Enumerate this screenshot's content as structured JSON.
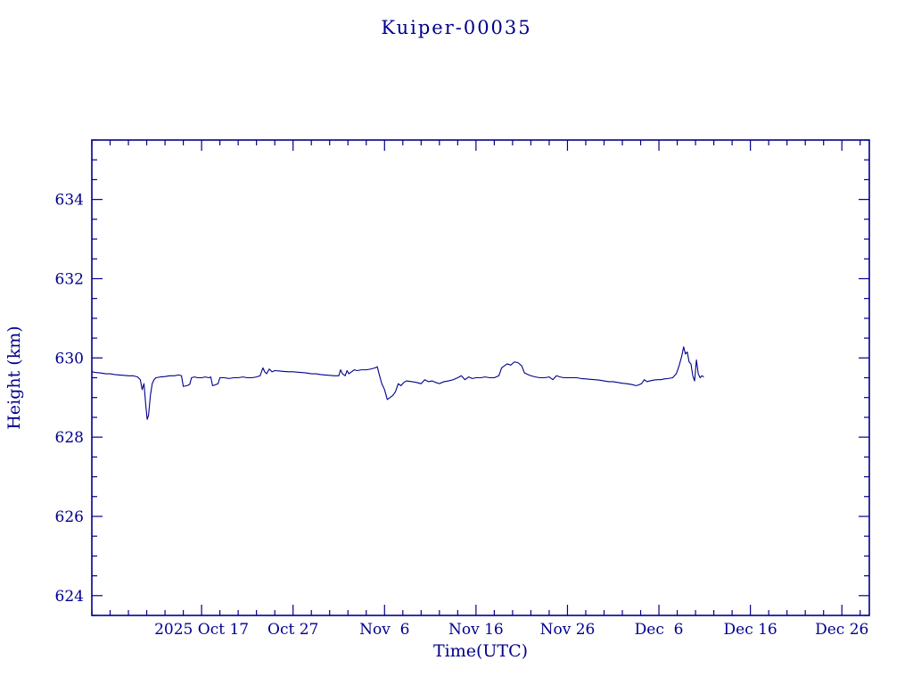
{
  "colors": {
    "ink": "#00008b",
    "background": "#ffffff"
  },
  "chart_data": {
    "type": "line",
    "title": "Kuiper-00035",
    "xlabel": "Time(UTC)",
    "ylabel": "Height (km)",
    "xlim": [
      0,
      85
    ],
    "ylim": [
      623.5,
      635.5
    ],
    "x_unit_note": "",
    "x_ticks": {
      "positions": [
        12,
        22,
        32,
        42,
        52,
        62,
        72,
        82
      ],
      "labels": [
        "2025 Oct 17",
        "Oct 27",
        "Nov  6",
        "Nov 16",
        "Nov 26",
        "Dec  6",
        "Dec 16",
        "Dec 26"
      ],
      "minor_step": 2
    },
    "y_ticks": {
      "positions": [
        624,
        626,
        628,
        630,
        632,
        634
      ],
      "labels": [
        "624",
        "626",
        "628",
        "630",
        "632",
        "634"
      ],
      "minor_step": 0.5
    },
    "series": [
      {
        "name": "height",
        "points": [
          [
            0.0,
            629.65
          ],
          [
            0.5,
            629.63
          ],
          [
            1.0,
            629.62
          ],
          [
            1.5,
            629.6
          ],
          [
            2.0,
            629.6
          ],
          [
            2.5,
            629.58
          ],
          [
            3.0,
            629.57
          ],
          [
            3.5,
            629.56
          ],
          [
            4.0,
            629.55
          ],
          [
            4.5,
            629.55
          ],
          [
            5.0,
            629.52
          ],
          [
            5.3,
            629.45
          ],
          [
            5.5,
            629.2
          ],
          [
            5.7,
            629.35
          ],
          [
            5.9,
            628.8
          ],
          [
            6.05,
            628.45
          ],
          [
            6.2,
            628.55
          ],
          [
            6.4,
            629.05
          ],
          [
            6.6,
            629.35
          ],
          [
            6.8,
            629.45
          ],
          [
            7.0,
            629.5
          ],
          [
            7.5,
            629.52
          ],
          [
            8.0,
            629.53
          ],
          [
            8.5,
            629.55
          ],
          [
            9.0,
            629.55
          ],
          [
            9.5,
            629.57
          ],
          [
            9.8,
            629.55
          ],
          [
            10.0,
            629.28
          ],
          [
            10.4,
            629.3
          ],
          [
            10.7,
            629.33
          ],
          [
            10.9,
            629.5
          ],
          [
            11.2,
            629.52
          ],
          [
            11.6,
            629.5
          ],
          [
            12.0,
            629.5
          ],
          [
            12.4,
            629.52
          ],
          [
            12.8,
            629.5
          ],
          [
            13.0,
            629.52
          ],
          [
            13.2,
            629.3
          ],
          [
            13.5,
            629.32
          ],
          [
            13.8,
            629.35
          ],
          [
            14.0,
            629.5
          ],
          [
            14.5,
            629.5
          ],
          [
            15.0,
            629.48
          ],
          [
            15.5,
            629.5
          ],
          [
            16.0,
            629.5
          ],
          [
            16.5,
            629.52
          ],
          [
            17.0,
            629.5
          ],
          [
            17.5,
            629.5
          ],
          [
            18.0,
            629.52
          ],
          [
            18.4,
            629.55
          ],
          [
            18.7,
            629.75
          ],
          [
            18.9,
            629.65
          ],
          [
            19.1,
            629.6
          ],
          [
            19.4,
            629.72
          ],
          [
            19.7,
            629.65
          ],
          [
            20.0,
            629.68
          ],
          [
            20.5,
            629.67
          ],
          [
            21.0,
            629.66
          ],
          [
            21.5,
            629.65
          ],
          [
            22.0,
            629.65
          ],
          [
            22.5,
            629.64
          ],
          [
            23.0,
            629.63
          ],
          [
            23.5,
            629.62
          ],
          [
            24.0,
            629.6
          ],
          [
            24.5,
            629.6
          ],
          [
            25.0,
            629.58
          ],
          [
            25.5,
            629.57
          ],
          [
            26.0,
            629.56
          ],
          [
            26.5,
            629.55
          ],
          [
            27.0,
            629.55
          ],
          [
            27.2,
            629.7
          ],
          [
            27.4,
            629.6
          ],
          [
            27.7,
            629.55
          ],
          [
            27.9,
            629.68
          ],
          [
            28.1,
            629.6
          ],
          [
            28.4,
            629.65
          ],
          [
            28.7,
            629.7
          ],
          [
            29.0,
            629.68
          ],
          [
            29.5,
            629.7
          ],
          [
            30.0,
            629.7
          ],
          [
            30.5,
            629.72
          ],
          [
            31.0,
            629.75
          ],
          [
            31.2,
            629.78
          ],
          [
            31.4,
            629.6
          ],
          [
            31.7,
            629.35
          ],
          [
            32.0,
            629.2
          ],
          [
            32.3,
            628.95
          ],
          [
            32.6,
            629.0
          ],
          [
            32.9,
            629.05
          ],
          [
            33.2,
            629.15
          ],
          [
            33.5,
            629.35
          ],
          [
            33.8,
            629.3
          ],
          [
            34.1,
            629.38
          ],
          [
            34.4,
            629.42
          ],
          [
            35.0,
            629.4
          ],
          [
            35.5,
            629.38
          ],
          [
            36.0,
            629.35
          ],
          [
            36.4,
            629.45
          ],
          [
            36.8,
            629.4
          ],
          [
            37.2,
            629.42
          ],
          [
            37.6,
            629.38
          ],
          [
            38.0,
            629.35
          ],
          [
            38.5,
            629.4
          ],
          [
            39.0,
            629.42
          ],
          [
            39.5,
            629.45
          ],
          [
            40.0,
            629.5
          ],
          [
            40.4,
            629.55
          ],
          [
            40.8,
            629.45
          ],
          [
            41.2,
            629.52
          ],
          [
            41.6,
            629.48
          ],
          [
            42.0,
            629.5
          ],
          [
            42.5,
            629.5
          ],
          [
            43.0,
            629.52
          ],
          [
            43.5,
            629.5
          ],
          [
            44.0,
            629.5
          ],
          [
            44.5,
            629.55
          ],
          [
            44.8,
            629.75
          ],
          [
            45.1,
            629.8
          ],
          [
            45.4,
            629.85
          ],
          [
            45.8,
            629.82
          ],
          [
            46.2,
            629.9
          ],
          [
            46.6,
            629.88
          ],
          [
            47.0,
            629.8
          ],
          [
            47.3,
            629.62
          ],
          [
            47.7,
            629.58
          ],
          [
            48.0,
            629.55
          ],
          [
            48.5,
            629.52
          ],
          [
            49.0,
            629.5
          ],
          [
            49.5,
            629.5
          ],
          [
            50.0,
            629.52
          ],
          [
            50.4,
            629.45
          ],
          [
            50.8,
            629.55
          ],
          [
            51.2,
            629.52
          ],
          [
            51.6,
            629.5
          ],
          [
            52.0,
            629.5
          ],
          [
            52.5,
            629.5
          ],
          [
            53.0,
            629.5
          ],
          [
            53.5,
            629.48
          ],
          [
            54.0,
            629.47
          ],
          [
            54.5,
            629.46
          ],
          [
            55.0,
            629.45
          ],
          [
            55.5,
            629.44
          ],
          [
            56.0,
            629.42
          ],
          [
            56.5,
            629.4
          ],
          [
            57.0,
            629.4
          ],
          [
            57.5,
            629.38
          ],
          [
            58.0,
            629.36
          ],
          [
            58.5,
            629.35
          ],
          [
            59.0,
            629.33
          ],
          [
            59.5,
            629.3
          ],
          [
            59.8,
            629.32
          ],
          [
            60.1,
            629.35
          ],
          [
            60.4,
            629.45
          ],
          [
            60.7,
            629.4
          ],
          [
            61.0,
            629.42
          ],
          [
            61.4,
            629.44
          ],
          [
            61.8,
            629.45
          ],
          [
            62.2,
            629.45
          ],
          [
            62.6,
            629.47
          ],
          [
            63.0,
            629.48
          ],
          [
            63.5,
            629.5
          ],
          [
            63.9,
            629.6
          ],
          [
            64.2,
            629.8
          ],
          [
            64.5,
            630.05
          ],
          [
            64.7,
            630.28
          ],
          [
            64.9,
            630.1
          ],
          [
            65.1,
            630.15
          ],
          [
            65.3,
            629.9
          ],
          [
            65.5,
            629.85
          ],
          [
            65.7,
            629.55
          ],
          [
            65.9,
            629.42
          ],
          [
            66.1,
            629.95
          ],
          [
            66.3,
            629.6
          ],
          [
            66.5,
            629.5
          ],
          [
            66.7,
            629.55
          ],
          [
            66.9,
            629.52
          ]
        ]
      }
    ],
    "legend": null,
    "grid": false
  }
}
